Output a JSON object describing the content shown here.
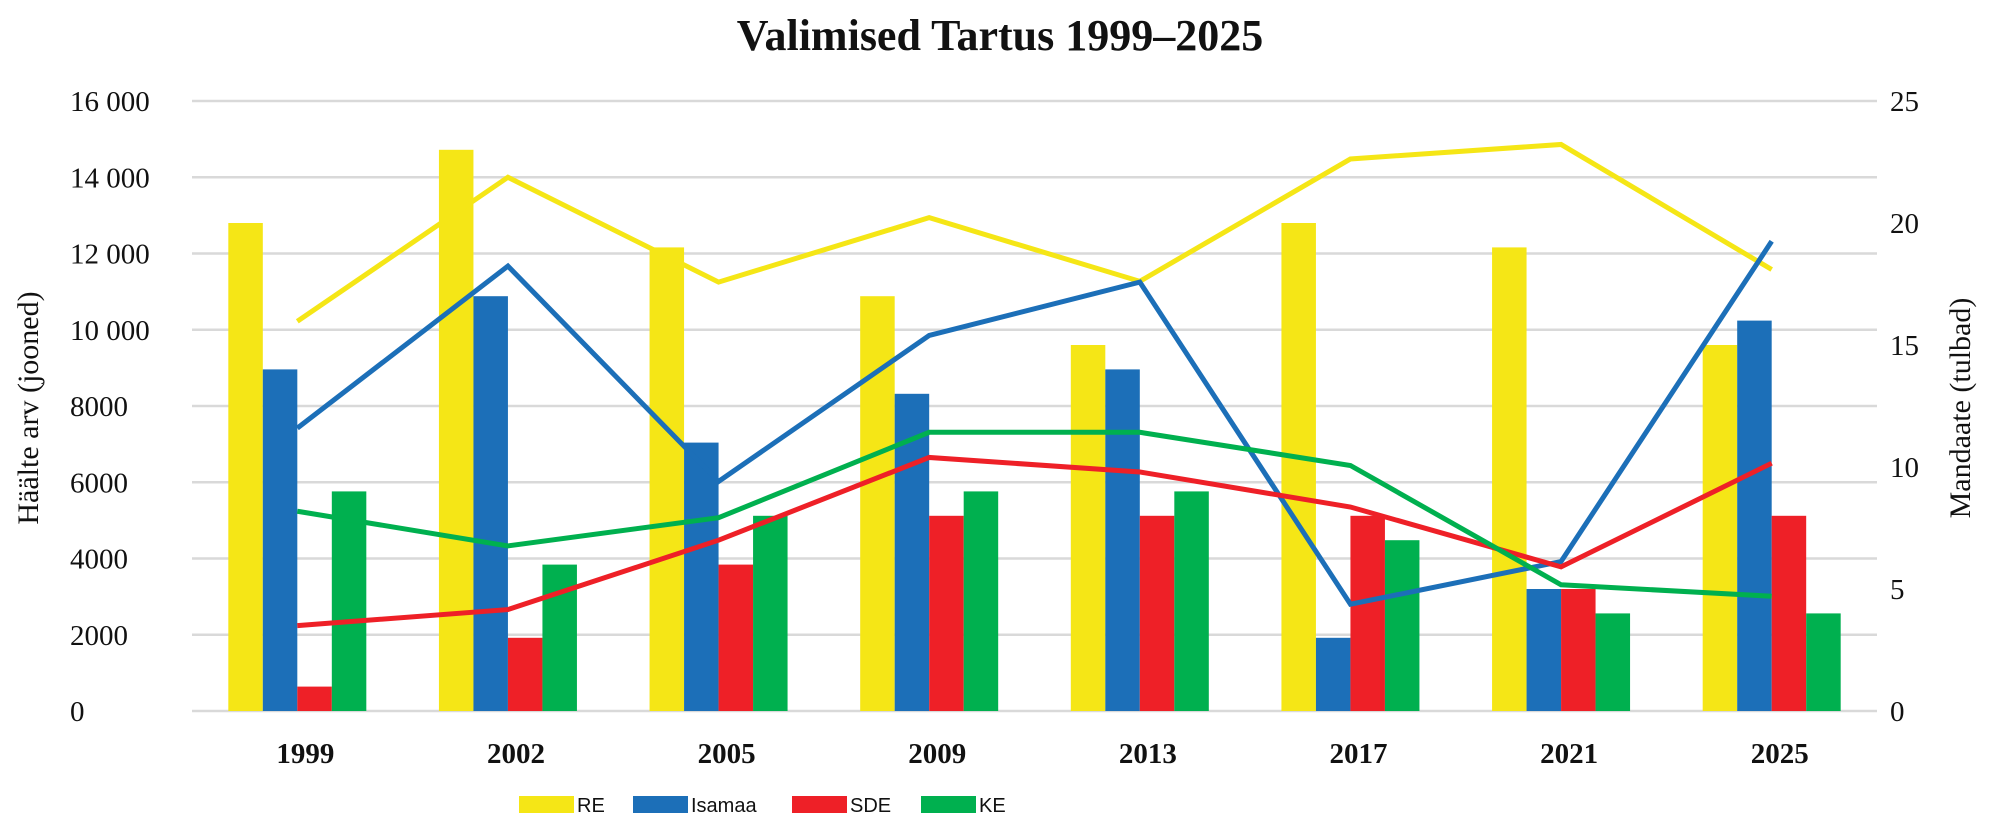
{
  "chart_data": {
    "type": "bar+line",
    "title": "Valimised Tartus 1999–2025",
    "categories": [
      "1999",
      "2002",
      "2005",
      "2009",
      "2013",
      "2017",
      "2021",
      "2025"
    ],
    "left_axis": {
      "label": "Häälte arv (jooned)",
      "range": [
        0,
        16000
      ],
      "ticks": [
        "0",
        "2000",
        "4000",
        "6000",
        "8000",
        "10 000",
        "12 000",
        "14 000",
        "16 000"
      ],
      "tick_values": [
        0,
        2000,
        4000,
        6000,
        8000,
        10000,
        12000,
        14000,
        16000
      ]
    },
    "right_axis": {
      "label": "Mandaate (tulbad)",
      "range": [
        0,
        25
      ],
      "ticks": [
        "0",
        "5",
        "10",
        "15",
        "20",
        "25"
      ],
      "tick_values": [
        0,
        5,
        10,
        15,
        20,
        25
      ]
    },
    "grid": true,
    "legend_position": "bottom",
    "series": [
      {
        "name": "RE",
        "color": "#F5E616",
        "seats": [
          20,
          23,
          19,
          17,
          15,
          20,
          19,
          15
        ],
        "votes": [
          10220,
          14000,
          11250,
          12940,
          11270,
          14480,
          14860,
          11580
        ]
      },
      {
        "name": "Isamaa",
        "color": "#1C6FB8",
        "seats": [
          14,
          17,
          11,
          13,
          14,
          3,
          5,
          16
        ],
        "votes": [
          7420,
          11670,
          6020,
          9850,
          11250,
          2800,
          3920,
          12320
        ]
      },
      {
        "name": "SDE",
        "color": "#EE2027",
        "seats": [
          1,
          3,
          6,
          8,
          8,
          8,
          5,
          8
        ],
        "votes": [
          2240,
          2660,
          4480,
          6650,
          6270,
          5350,
          3780,
          6500
        ]
      },
      {
        "name": "KE",
        "color": "#00B04F",
        "seats": [
          9,
          6,
          8,
          9,
          9,
          7,
          4,
          4
        ],
        "votes": [
          5240,
          4330,
          5070,
          7310,
          7310,
          6440,
          3310,
          3010
        ]
      }
    ]
  }
}
